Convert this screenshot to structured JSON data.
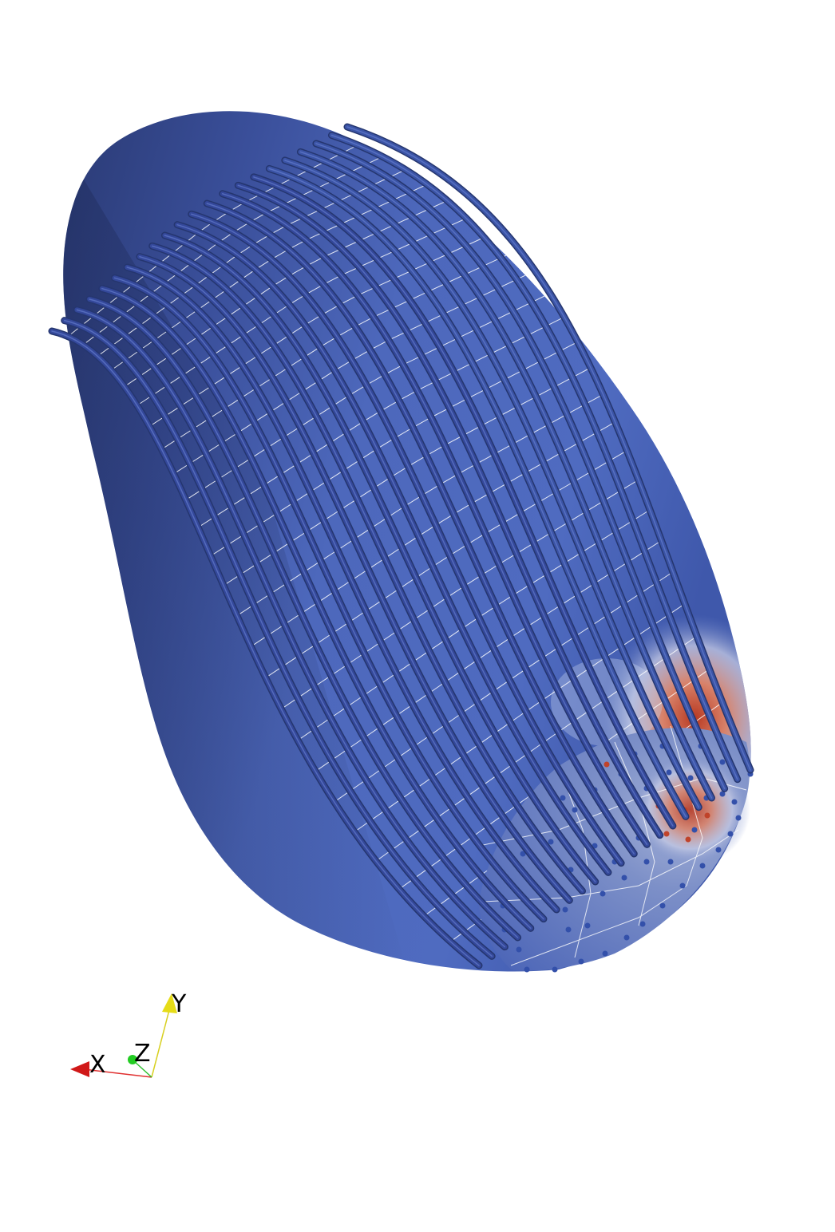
{
  "axes": {
    "x_label": "X",
    "y_label": "Y",
    "z_label": "Z",
    "x_color": "#d81e1e",
    "y_color": "#e8e21a",
    "z_color": "#22cc22"
  },
  "colors": {
    "background": "#ffffff",
    "surface_base": "#4b63b6",
    "surface_dark": "#2b3b73",
    "surface_light": "#5a75c8",
    "mesh_lines": "#ffffff",
    "fibers": "#3a4f9c",
    "hot": "#b03020",
    "warm": "#e8b090",
    "node_blue": "#3450a8",
    "node_red": "#c04028"
  }
}
